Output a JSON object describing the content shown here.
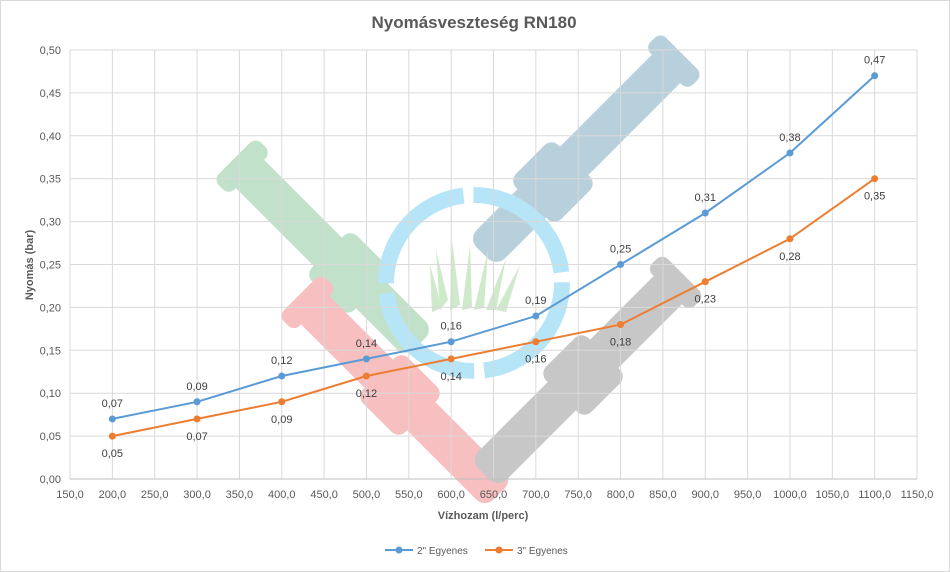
{
  "chart_data": {
    "type": "line",
    "title": "Nyomásveszteség RN180",
    "xlabel": "Vízhozam (l/perc)",
    "ylabel": "Nyomás (bar)",
    "xlim": [
      150,
      1150
    ],
    "ylim": [
      0,
      0.5
    ],
    "x_ticks": [
      "150,0",
      "200,0",
      "250,0",
      "300,0",
      "350,0",
      "400,0",
      "450,0",
      "500,0",
      "550,0",
      "600,0",
      "650,0",
      "700,0",
      "750,0",
      "800,0",
      "850,0",
      "900,0",
      "950,0",
      "1000,0",
      "1050,0",
      "1100,0",
      "1150,0"
    ],
    "y_ticks": [
      "0,00",
      "0,05",
      "0,10",
      "0,15",
      "0,20",
      "0,25",
      "0,30",
      "0,35",
      "0,40",
      "0,45",
      "0,50"
    ],
    "x": [
      200,
      300,
      400,
      500,
      600,
      700,
      800,
      900,
      1000,
      1100
    ],
    "series": [
      {
        "name": "2\" Egyenes",
        "color": "#5b9bd5",
        "values": [
          0.07,
          0.09,
          0.12,
          0.14,
          0.16,
          0.19,
          0.25,
          0.31,
          0.38,
          0.47
        ],
        "labels": [
          "0,07",
          "0,09",
          "0,12",
          "0,14",
          "0,16",
          "0,19",
          "0,25",
          "0,31",
          "0,38",
          "0,47"
        ]
      },
      {
        "name": "3\" Egyenes",
        "color": "#ed7d31",
        "values": [
          0.05,
          0.07,
          0.09,
          0.12,
          0.14,
          0.16,
          0.18,
          0.23,
          0.28,
          0.35
        ],
        "labels": [
          "0,05",
          "0,07",
          "0,09",
          "0,12",
          "0,14",
          "0,16",
          "0,18",
          "0,23",
          "0,28",
          "0,35"
        ]
      }
    ],
    "grid": true,
    "legend_position": "bottom"
  }
}
